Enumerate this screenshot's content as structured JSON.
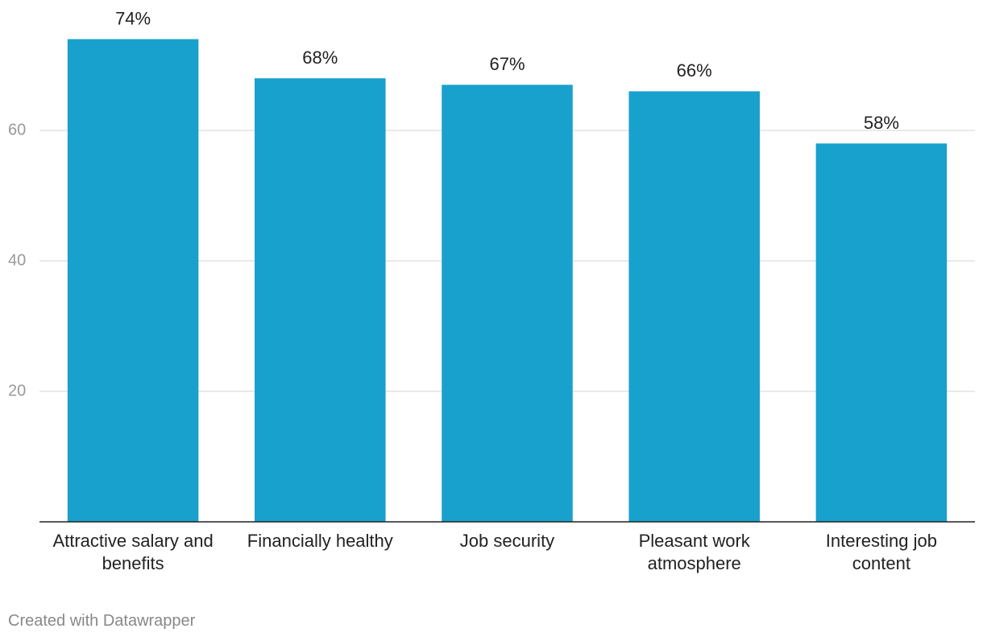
{
  "chart_data": {
    "type": "bar",
    "categories": [
      "Attractive salary and benefits",
      "Financially healthy",
      "Job security",
      "Pleasant work atmosphere",
      "Interesting job content"
    ],
    "values": [
      74,
      68,
      67,
      66,
      58
    ],
    "value_labels": [
      "74%",
      "68%",
      "67%",
      "66%",
      "58%"
    ],
    "color": "#18a1cd",
    "ylim": [
      0,
      80
    ],
    "yticks": [
      20,
      40,
      60
    ],
    "grid": true,
    "footer": "Created with Datawrapper"
  }
}
